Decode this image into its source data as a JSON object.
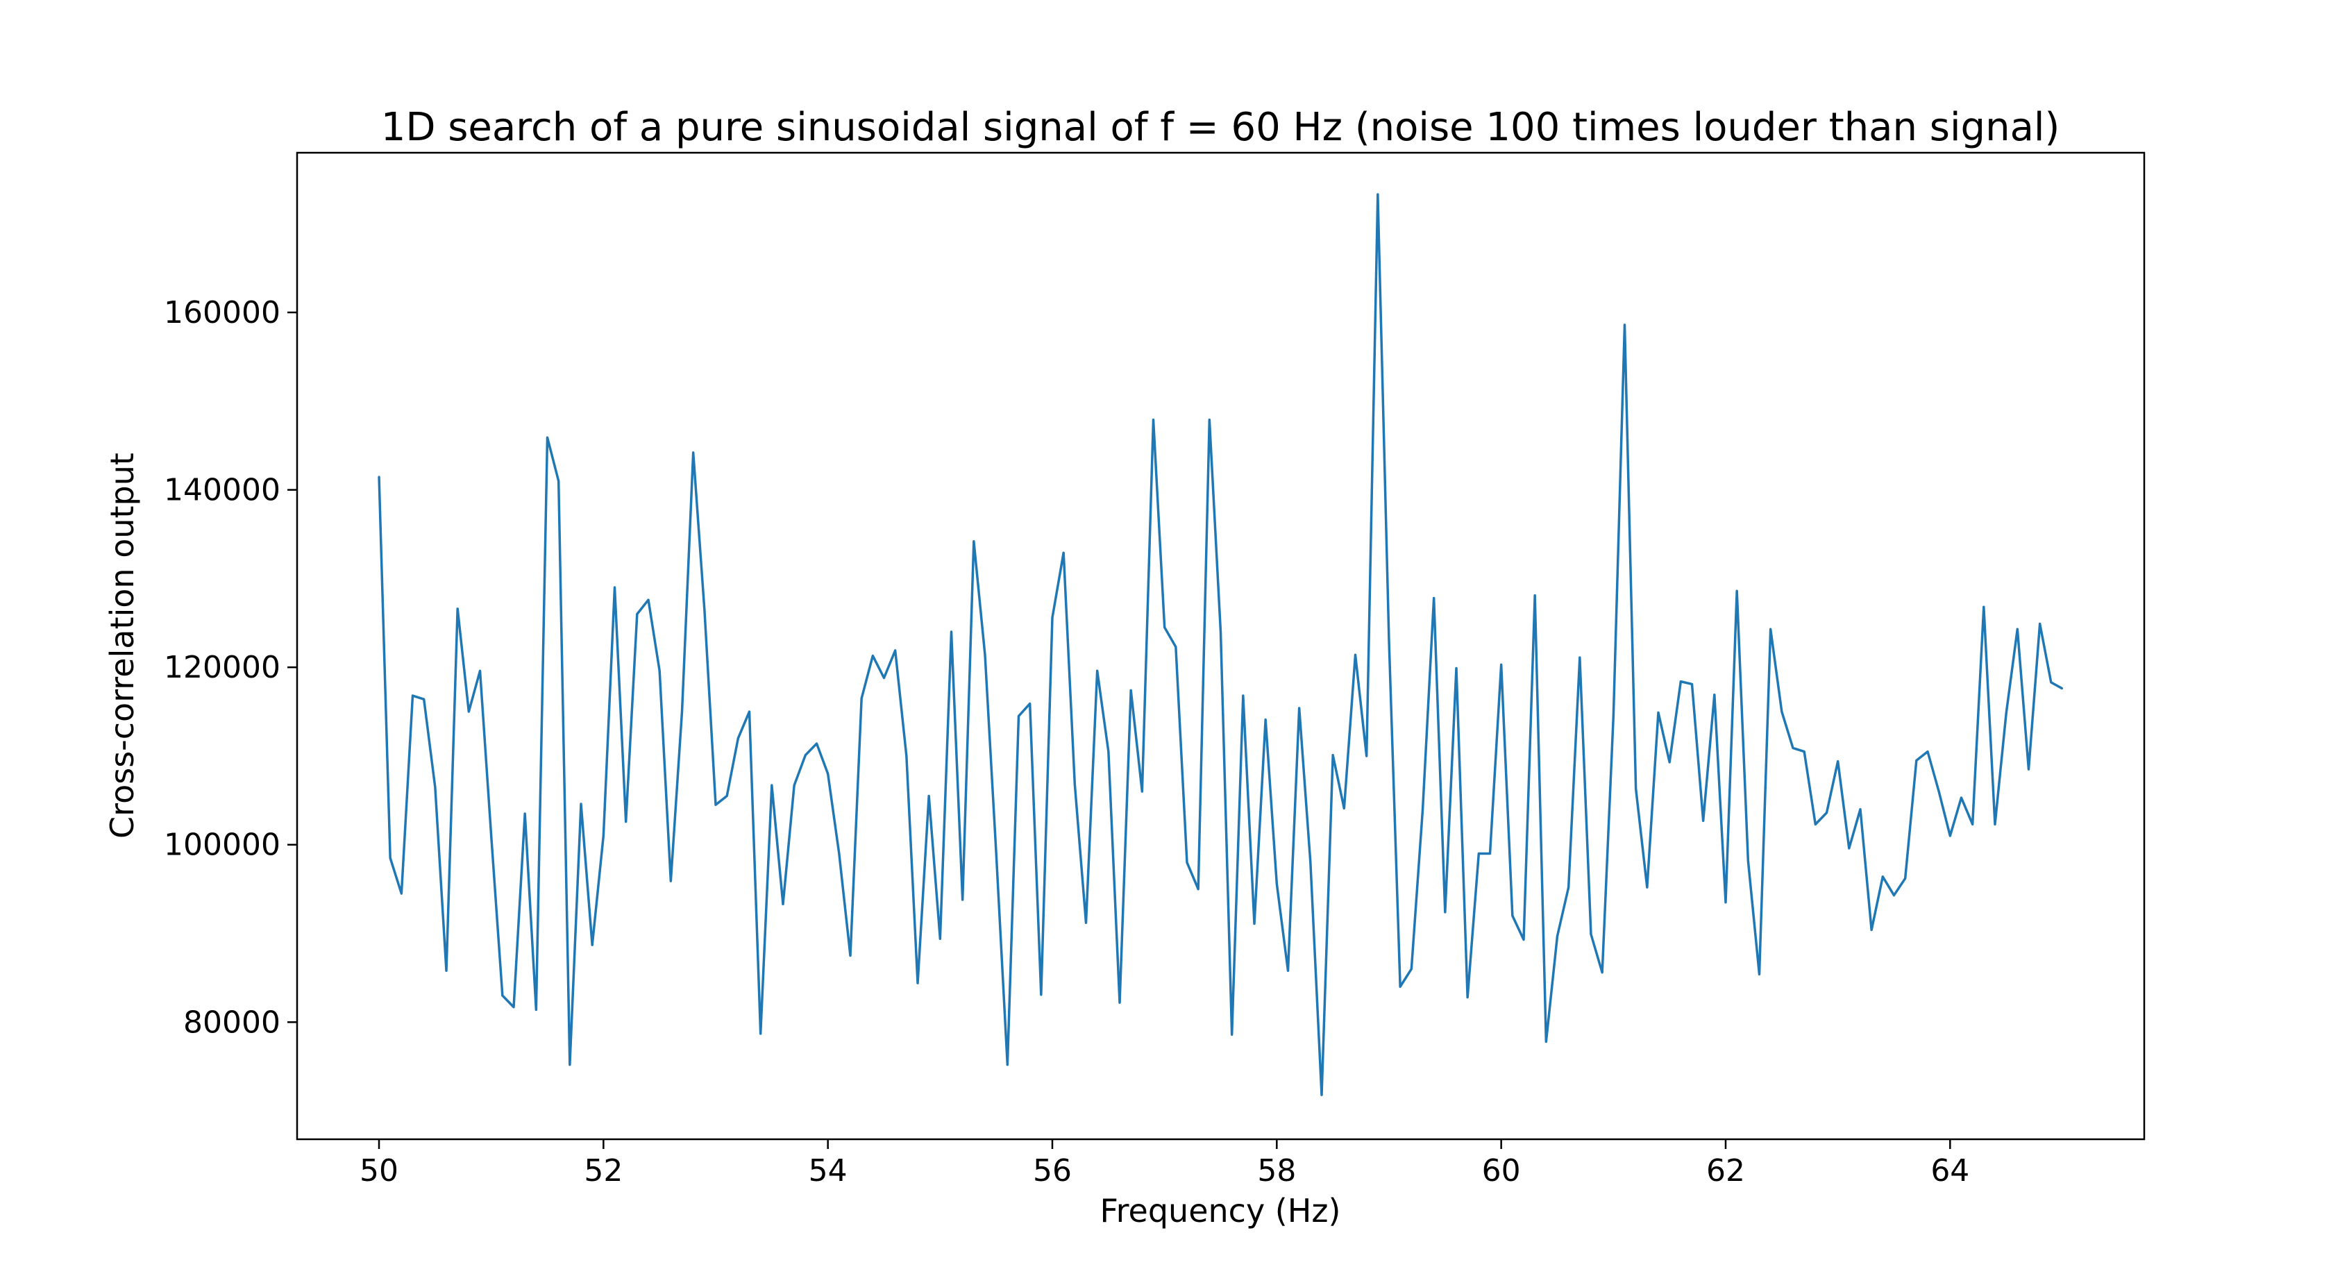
{
  "chart_data": {
    "type": "line",
    "title": "1D search of a pure sinusoidal signal of f = 60 Hz (noise 100 times louder than signal)",
    "xlabel": "Frequency (Hz)",
    "ylabel": "Cross-correlation output",
    "xlim": [
      49.27,
      65.73
    ],
    "ylim": [
      66800,
      178000
    ],
    "xticks": [
      50,
      52,
      54,
      56,
      58,
      60,
      62,
      64
    ],
    "xtick_labels": [
      "50",
      "52",
      "54",
      "56",
      "58",
      "60",
      "62",
      "64"
    ],
    "yticks": [
      80000,
      100000,
      120000,
      140000,
      160000
    ],
    "ytick_labels": [
      "80000",
      "100000",
      "120000",
      "140000",
      "160000"
    ],
    "grid": false,
    "legend": false,
    "series": [
      {
        "color": "#1f77b4",
        "x": [
          50.0,
          50.1,
          50.2,
          50.3,
          50.4,
          50.5,
          50.6,
          50.7,
          50.8,
          50.9,
          51.0,
          51.1,
          51.2,
          51.3,
          51.4,
          51.5,
          51.6,
          51.7,
          51.8,
          51.9,
          52.0,
          52.1,
          52.2,
          52.3,
          52.4,
          52.5,
          52.6,
          52.7,
          52.8,
          52.9,
          53.0,
          53.1,
          53.2,
          53.3,
          53.4,
          53.5,
          53.6,
          53.7,
          53.8,
          53.9,
          54.0,
          54.1,
          54.2,
          54.3,
          54.4,
          54.5,
          54.6,
          54.7,
          54.8,
          54.9,
          55.0,
          55.1,
          55.2,
          55.3,
          55.4,
          55.5,
          55.6,
          55.7,
          55.8,
          55.9,
          56.0,
          56.1,
          56.2,
          56.3,
          56.4,
          56.5,
          56.6,
          56.7,
          56.8,
          56.9,
          57.0,
          57.1,
          57.2,
          57.3,
          57.4,
          57.5,
          57.6,
          57.7,
          57.8,
          57.9,
          58.0,
          58.1,
          58.2,
          58.3,
          58.4,
          58.5,
          58.6,
          58.7,
          58.8,
          58.9,
          59.0,
          59.1,
          59.2,
          59.3,
          59.4,
          59.5,
          59.6,
          59.7,
          59.8,
          59.9,
          60.0,
          60.1,
          60.2,
          60.3,
          60.4,
          60.5,
          60.6,
          60.7,
          60.8,
          60.9,
          61.0,
          61.1,
          61.2,
          61.3,
          61.4,
          61.5,
          61.6,
          61.7,
          61.8,
          61.9,
          62.0,
          62.1,
          62.2,
          62.3,
          62.4,
          62.5,
          62.6,
          62.7,
          62.8,
          62.9,
          63.0,
          63.1,
          63.2,
          63.3,
          63.4,
          63.5,
          63.6,
          63.7,
          63.8,
          63.9,
          64.0,
          64.1,
          64.2,
          64.3,
          64.4,
          64.5,
          64.6,
          64.7,
          64.8,
          64.9,
          65.0
        ],
        "y": [
          141500,
          98500,
          94500,
          116800,
          116400,
          106500,
          85800,
          126600,
          115000,
          119600,
          101000,
          83000,
          81700,
          103500,
          81400,
          145900,
          141000,
          75200,
          104600,
          88700,
          101000,
          129000,
          102600,
          126000,
          127600,
          119600,
          95900,
          115000,
          144200,
          126500,
          104500,
          105500,
          112000,
          115000,
          78700,
          106700,
          93300,
          106700,
          110100,
          111400,
          108000,
          99000,
          87500,
          116500,
          121300,
          118800,
          121900,
          110000,
          84400,
          105500,
          89400,
          124000,
          93800,
          134200,
          121400,
          99000,
          75200,
          114500,
          115900,
          83100,
          125600,
          132900,
          106800,
          91200,
          119600,
          110500,
          82200,
          117400,
          106000,
          147900,
          124500,
          122300,
          98000,
          95000,
          147900,
          124000,
          78600,
          116800,
          91100,
          114100,
          95600,
          85800,
          115400,
          98000,
          71800,
          110100,
          104100,
          121400,
          110000,
          173300,
          123000,
          84000,
          86000,
          103900,
          127800,
          92400,
          119900,
          82800,
          99000,
          99000,
          120300,
          92000,
          89300,
          128100,
          77800,
          89700,
          95200,
          121100,
          89900,
          85600,
          114500,
          158600,
          106300,
          95200,
          114900,
          109300,
          118400,
          118100,
          102700,
          116900,
          93500,
          128600,
          98200,
          85400,
          124300,
          115000,
          110900,
          110500,
          102300,
          103600,
          109400,
          99600,
          104000,
          90400,
          96400,
          94300,
          96200,
          109500,
          110500,
          106000,
          101000,
          105300,
          102300,
          126800,
          102300,
          114800,
          124300,
          108500,
          124900,
          118300,
          117600
        ]
      }
    ]
  }
}
